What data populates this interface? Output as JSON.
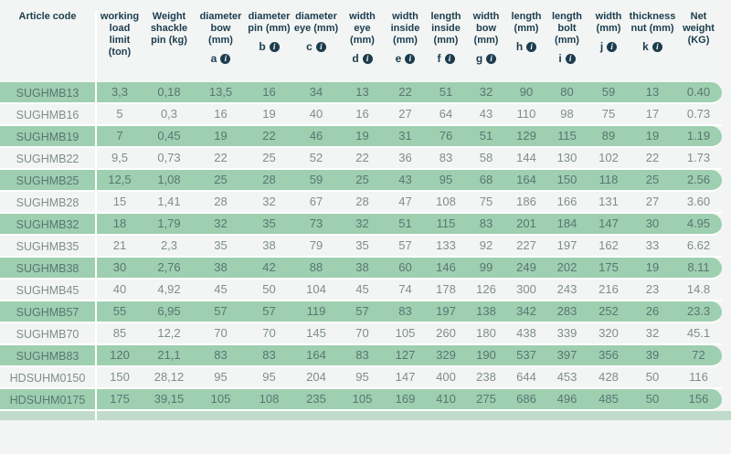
{
  "colors": {
    "row_green": "#9ecfb0",
    "row_light": "#f2f5f3",
    "strip_green": "#c0dbcc",
    "header_text": "#1c3c4e",
    "text_on_green": "#587673",
    "text_on_light": "#7f8d8c",
    "separator": "#ffffff"
  },
  "info_icon_glyph": "i",
  "chart_data": {
    "type": "table",
    "title": "Shackle specifications table"
  },
  "table": {
    "columns": [
      {
        "id": "article_code",
        "label_lines": [
          "Article code"
        ],
        "letter": null
      },
      {
        "id": "working_load_limit",
        "label_lines": [
          "working",
          "load",
          "limit",
          "(ton)"
        ],
        "letter": null
      },
      {
        "id": "weight_shackle_pin",
        "label_lines": [
          "Weight",
          "shackle",
          "pin (kg)"
        ],
        "letter": null
      },
      {
        "id": "diameter_bow",
        "label_lines": [
          "diameter",
          "bow",
          "(mm)"
        ],
        "letter": "a"
      },
      {
        "id": "diameter_pin",
        "label_lines": [
          "diameter",
          "pin (mm)"
        ],
        "letter": "b"
      },
      {
        "id": "diameter_eye",
        "label_lines": [
          "diameter",
          "eye (mm)"
        ],
        "letter": "c"
      },
      {
        "id": "width_eye",
        "label_lines": [
          "width",
          "eye",
          "(mm)"
        ],
        "letter": "d"
      },
      {
        "id": "width_inside",
        "label_lines": [
          "width",
          "inside",
          "(mm)"
        ],
        "letter": "e"
      },
      {
        "id": "length_inside",
        "label_lines": [
          "length",
          "inside",
          "(mm)"
        ],
        "letter": "f"
      },
      {
        "id": "width_bow",
        "label_lines": [
          "width",
          "bow",
          "(mm)"
        ],
        "letter": "g"
      },
      {
        "id": "length",
        "label_lines": [
          "length",
          "(mm)"
        ],
        "letter": "h"
      },
      {
        "id": "length_bolt",
        "label_lines": [
          "length",
          "bolt",
          "(mm)"
        ],
        "letter": "i"
      },
      {
        "id": "width",
        "label_lines": [
          "width",
          "(mm)"
        ],
        "letter": "j"
      },
      {
        "id": "thickness_nut",
        "label_lines": [
          "thickness",
          "nut (mm)"
        ],
        "letter": "k"
      },
      {
        "id": "net_weight",
        "label_lines": [
          "Net",
          "weight",
          "(KG)"
        ],
        "letter": null
      }
    ],
    "rows": [
      {
        "code": "SUGHMB13",
        "values": [
          "3,3",
          "0,18",
          "13,5",
          "16",
          "34",
          "13",
          "22",
          "51",
          "32",
          "90",
          "80",
          "59",
          "13",
          "0.40"
        ]
      },
      {
        "code": "SUGHMB16",
        "values": [
          "5",
          "0,3",
          "16",
          "19",
          "40",
          "16",
          "27",
          "64",
          "43",
          "110",
          "98",
          "75",
          "17",
          "0.73"
        ]
      },
      {
        "code": "SUGHMB19",
        "values": [
          "7",
          "0,45",
          "19",
          "22",
          "46",
          "19",
          "31",
          "76",
          "51",
          "129",
          "115",
          "89",
          "19",
          "1.19"
        ]
      },
      {
        "code": "SUGHMB22",
        "values": [
          "9,5",
          "0,73",
          "22",
          "25",
          "52",
          "22",
          "36",
          "83",
          "58",
          "144",
          "130",
          "102",
          "22",
          "1.73"
        ]
      },
      {
        "code": "SUGHMB25",
        "values": [
          "12,5",
          "1,08",
          "25",
          "28",
          "59",
          "25",
          "43",
          "95",
          "68",
          "164",
          "150",
          "118",
          "25",
          "2.56"
        ]
      },
      {
        "code": "SUGHMB28",
        "values": [
          "15",
          "1,41",
          "28",
          "32",
          "67",
          "28",
          "47",
          "108",
          "75",
          "186",
          "166",
          "131",
          "27",
          "3.60"
        ]
      },
      {
        "code": "SUGHMB32",
        "values": [
          "18",
          "1,79",
          "32",
          "35",
          "73",
          "32",
          "51",
          "115",
          "83",
          "201",
          "184",
          "147",
          "30",
          "4.95"
        ]
      },
      {
        "code": "SUGHMB35",
        "values": [
          "21",
          "2,3",
          "35",
          "38",
          "79",
          "35",
          "57",
          "133",
          "92",
          "227",
          "197",
          "162",
          "33",
          "6.62"
        ]
      },
      {
        "code": "SUGHMB38",
        "values": [
          "30",
          "2,76",
          "38",
          "42",
          "88",
          "38",
          "60",
          "146",
          "99",
          "249",
          "202",
          "175",
          "19",
          "8.11"
        ]
      },
      {
        "code": "SUGHMB45",
        "values": [
          "40",
          "4,92",
          "45",
          "50",
          "104",
          "45",
          "74",
          "178",
          "126",
          "300",
          "243",
          "216",
          "23",
          "14.8"
        ]
      },
      {
        "code": "SUGHMB57",
        "values": [
          "55",
          "6,95",
          "57",
          "57",
          "119",
          "57",
          "83",
          "197",
          "138",
          "342",
          "283",
          "252",
          "26",
          "23.3"
        ]
      },
      {
        "code": "SUGHMB70",
        "values": [
          "85",
          "12,2",
          "70",
          "70",
          "145",
          "70",
          "105",
          "260",
          "180",
          "438",
          "339",
          "320",
          "32",
          "45.1"
        ]
      },
      {
        "code": "SUGHMB83",
        "values": [
          "120",
          "21,1",
          "83",
          "83",
          "164",
          "83",
          "127",
          "329",
          "190",
          "537",
          "397",
          "356",
          "39",
          "72"
        ]
      },
      {
        "code": "HDSUHM0150",
        "values": [
          "150",
          "28,12",
          "95",
          "95",
          "204",
          "95",
          "147",
          "400",
          "238",
          "644",
          "453",
          "428",
          "50",
          "116"
        ]
      },
      {
        "code": "HDSUHM0175",
        "values": [
          "175",
          "39,15",
          "105",
          "108",
          "235",
          "105",
          "169",
          "410",
          "275",
          "686",
          "496",
          "485",
          "50",
          "156"
        ]
      }
    ]
  }
}
